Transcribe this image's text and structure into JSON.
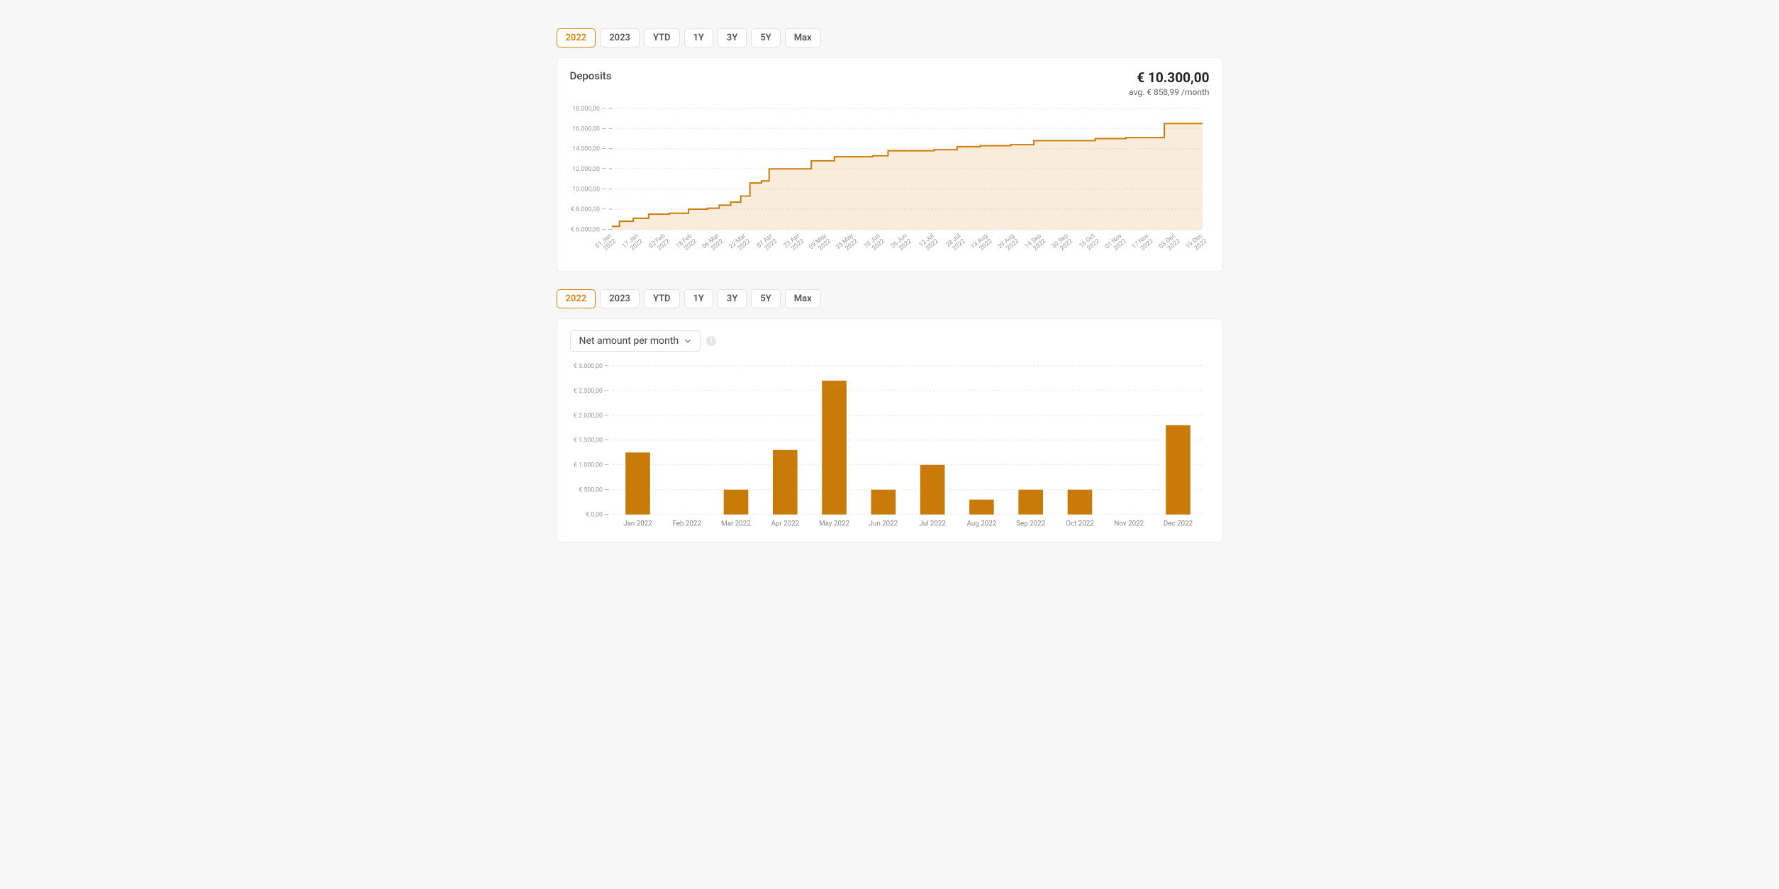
{
  "colors": {
    "accent": "#d98207",
    "bar_fill": "#c97b0a",
    "area_fill": "#d98207",
    "line_stroke": "#c97b0a",
    "grid": "#dddddd",
    "text_muted": "#9a9a9a",
    "background": "#f7f7f7",
    "card_bg": "#ffffff"
  },
  "tabs_top": {
    "active_index": 0,
    "items": [
      "2022",
      "2023",
      "YTD",
      "1Y",
      "3Y",
      "5Y",
      "Max"
    ]
  },
  "tabs_bottom": {
    "active_index": 0,
    "items": [
      "2022",
      "2023",
      "YTD",
      "1Y",
      "3Y",
      "5Y",
      "Max"
    ]
  },
  "deposits_chart": {
    "title": "Deposits",
    "total_label": "€ 10.300,00",
    "avg_label": "avg. € 858,99 /month",
    "type": "area-step",
    "ylim": [
      6000,
      18000
    ],
    "ytick_step": 2000,
    "ytick_labels": [
      "€ 6.000,00",
      "€ 8.000,00",
      "€ 10.000,00",
      "€ 12.000,00",
      "€ 14.000,00",
      "€ 16.000,00",
      "€ 18.000,00"
    ],
    "x_labels": [
      "01 Jan 2022",
      "17 Jan 2022",
      "02 Feb 2022",
      "18 Feb 2022",
      "06 Mar 2022",
      "22 Mar 2022",
      "07 Apr 2022",
      "23 Apr 2022",
      "09 May 2022",
      "25 May 2022",
      "10 Jun 2022",
      "26 Jun 2022",
      "12 Jul 2022",
      "28 Jul 2022",
      "13 Aug 2022",
      "29 Aug 2022",
      "14 Sep 2022",
      "30 Sep 2022",
      "16 Oct 2022",
      "01 Nov 2022",
      "17 Nov 2022",
      "03 Dec 2022",
      "19 Dec 2022"
    ],
    "points": [
      [
        0,
        6300
      ],
      [
        10,
        6800
      ],
      [
        28,
        7100
      ],
      [
        48,
        7500
      ],
      [
        75,
        7600
      ],
      [
        100,
        8000
      ],
      [
        125,
        8100
      ],
      [
        140,
        8400
      ],
      [
        155,
        8700
      ],
      [
        168,
        9300
      ],
      [
        180,
        10600
      ],
      [
        195,
        10800
      ],
      [
        205,
        12000
      ],
      [
        240,
        12000
      ],
      [
        260,
        12800
      ],
      [
        290,
        13200
      ],
      [
        310,
        13200
      ],
      [
        340,
        13300
      ],
      [
        360,
        13800
      ],
      [
        400,
        13800
      ],
      [
        420,
        13900
      ],
      [
        450,
        14200
      ],
      [
        480,
        14300
      ],
      [
        520,
        14400
      ],
      [
        550,
        14800
      ],
      [
        600,
        14800
      ],
      [
        630,
        15000
      ],
      [
        670,
        15100
      ],
      [
        720,
        16500
      ],
      [
        770,
        16500
      ]
    ],
    "x_range": 770,
    "title_fontsize": 15,
    "total_fontsize": 19,
    "sub_fontsize": 12,
    "axis_fontsize": 9
  },
  "net_chart": {
    "dropdown_label": "Net amount per month",
    "type": "bar",
    "ylim": [
      0,
      3000
    ],
    "ytick_step": 500,
    "ytick_labels": [
      "€ 0,00",
      "€ 500,00",
      "€ 1.000,00",
      "€ 1.500,00",
      "€ 2.000,00",
      "€ 2.500,00",
      "€ 3.000,00"
    ],
    "categories": [
      "Jan 2022",
      "Feb 2022",
      "Mar 2022",
      "Apr 2022",
      "May 2022",
      "Jun 2022",
      "Jul 2022",
      "Aug 2022",
      "Sep 2022",
      "Oct 2022",
      "Nov 2022",
      "Dec 2022"
    ],
    "values": [
      1250,
      0,
      500,
      1300,
      2700,
      500,
      1000,
      300,
      500,
      500,
      0,
      1800
    ],
    "bar_width": 0.5,
    "label_fontsize": 10
  }
}
